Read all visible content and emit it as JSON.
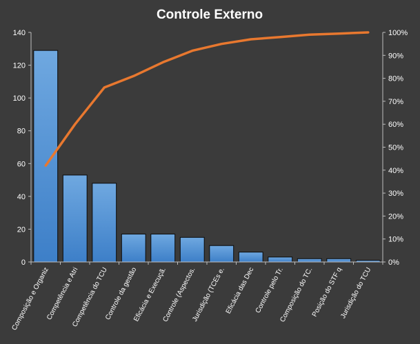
{
  "chart_data": {
    "type": "bar",
    "title": "Controle  Externo",
    "categories": [
      "Composição e Organiz",
      "Competência e Atri",
      "Competência do TCU",
      "Controle da gestão",
      "Eficácia e Execuçã.",
      "Controle (Aspectos.",
      "Jurisdição (TCEs e.",
      "Eficácia das Dec",
      "Controle pelo Tr.",
      "Composição do TC.",
      "Posição do STF q",
      "Jurisdição do TCU"
    ],
    "series": [
      {
        "type": "bar",
        "axis": "left",
        "values": [
          129,
          53,
          48,
          17,
          17,
          15,
          10,
          6,
          3,
          2,
          2,
          1
        ]
      },
      {
        "type": "line",
        "axis": "right",
        "values": [
          42,
          60,
          76,
          81,
          87,
          92,
          95,
          97,
          98,
          99,
          99.5,
          100
        ]
      }
    ],
    "y_left": {
      "min": 0,
      "max": 140,
      "ticks": [
        "0",
        "20",
        "40",
        "60",
        "80",
        "100",
        "120",
        "140"
      ]
    },
    "y_right": {
      "min": 0,
      "max": 100,
      "ticks": [
        "0%",
        "10%",
        "20%",
        "30%",
        "40%",
        "50%",
        "60%",
        "70%",
        "80%",
        "90%",
        "100%"
      ]
    },
    "grid": false,
    "colors": {
      "bar_top": "#6fa8e0",
      "bar_bottom": "#3d7fc8",
      "bar_edge": "#0a0a0a",
      "line": "#e8782f",
      "background": "#3b3b3b",
      "axis": "#bfbfbf"
    }
  }
}
